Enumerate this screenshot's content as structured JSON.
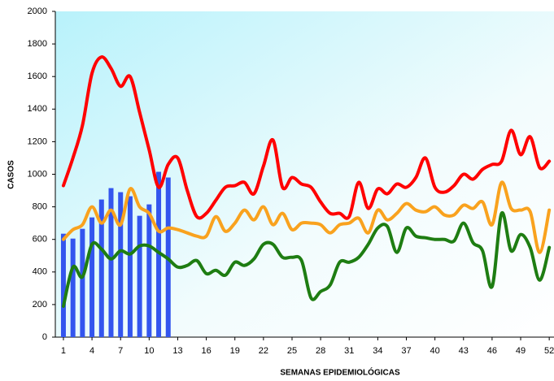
{
  "chart_data": {
    "type": "line",
    "x_label": "SEMANAS EPIDEMIOLÓGICAS",
    "y_label": "CASOS",
    "x": [
      1,
      2,
      3,
      4,
      5,
      6,
      7,
      8,
      9,
      10,
      11,
      12,
      13,
      14,
      15,
      16,
      17,
      18,
      19,
      20,
      21,
      22,
      23,
      24,
      25,
      26,
      27,
      28,
      29,
      30,
      31,
      32,
      33,
      34,
      35,
      36,
      37,
      38,
      39,
      40,
      41,
      42,
      43,
      44,
      45,
      46,
      47,
      48,
      49,
      50,
      51,
      52
    ],
    "xlim": [
      0.15,
      52.5
    ],
    "xticks": [
      1,
      4,
      7,
      10,
      13,
      16,
      19,
      22,
      25,
      28,
      31,
      34,
      37,
      40,
      43,
      46,
      49,
      52
    ],
    "ylim": [
      0,
      2000
    ],
    "yticks": [
      0,
      200,
      400,
      600,
      800,
      1000,
      1200,
      1400,
      1600,
      1800,
      2000
    ],
    "grid": false,
    "bars": {
      "color": "#3355ee",
      "values": [
        635,
        605,
        665,
        735,
        845,
        915,
        890,
        865,
        745,
        815,
        1015,
        980,
        null,
        null,
        null,
        null,
        null,
        null,
        null,
        null,
        null,
        null,
        null,
        null,
        null,
        null,
        null,
        null,
        null,
        null,
        null,
        null,
        null,
        null,
        null,
        null,
        null,
        null,
        null,
        null,
        null,
        null,
        null,
        null,
        null,
        null,
        null,
        null,
        null,
        null,
        null,
        null
      ]
    },
    "series": [
      {
        "color": "#ff0000",
        "values": [
          930,
          1100,
          1300,
          1620,
          1720,
          1650,
          1540,
          1600,
          1380,
          1150,
          920,
          1060,
          1100,
          900,
          740,
          760,
          840,
          920,
          930,
          950,
          880,
          1050,
          1210,
          920,
          980,
          940,
          920,
          830,
          760,
          760,
          740,
          950,
          790,
          910,
          880,
          940,
          920,
          980,
          1100,
          920,
          890,
          930,
          1000,
          970,
          1030,
          1060,
          1080,
          1270,
          1120,
          1230,
          1040,
          1080
        ]
      },
      {
        "color": "#f9a21e",
        "values": [
          600,
          660,
          690,
          800,
          700,
          780,
          690,
          910,
          800,
          760,
          650,
          670,
          660,
          640,
          620,
          620,
          740,
          650,
          700,
          780,
          720,
          800,
          690,
          760,
          660,
          700,
          700,
          690,
          640,
          690,
          700,
          730,
          640,
          780,
          720,
          760,
          820,
          780,
          770,
          800,
          750,
          750,
          810,
          790,
          830,
          690,
          950,
          790,
          780,
          770,
          520,
          780
        ]
      },
      {
        "color": "#1e7d12",
        "values": [
          190,
          430,
          370,
          570,
          540,
          480,
          530,
          510,
          560,
          560,
          520,
          480,
          430,
          440,
          470,
          390,
          410,
          380,
          460,
          440,
          480,
          570,
          570,
          490,
          490,
          470,
          240,
          280,
          320,
          460,
          460,
          490,
          570,
          670,
          680,
          520,
          670,
          620,
          610,
          600,
          600,
          590,
          700,
          580,
          530,
          310,
          760,
          530,
          630,
          550,
          350,
          550
        ]
      }
    ]
  }
}
